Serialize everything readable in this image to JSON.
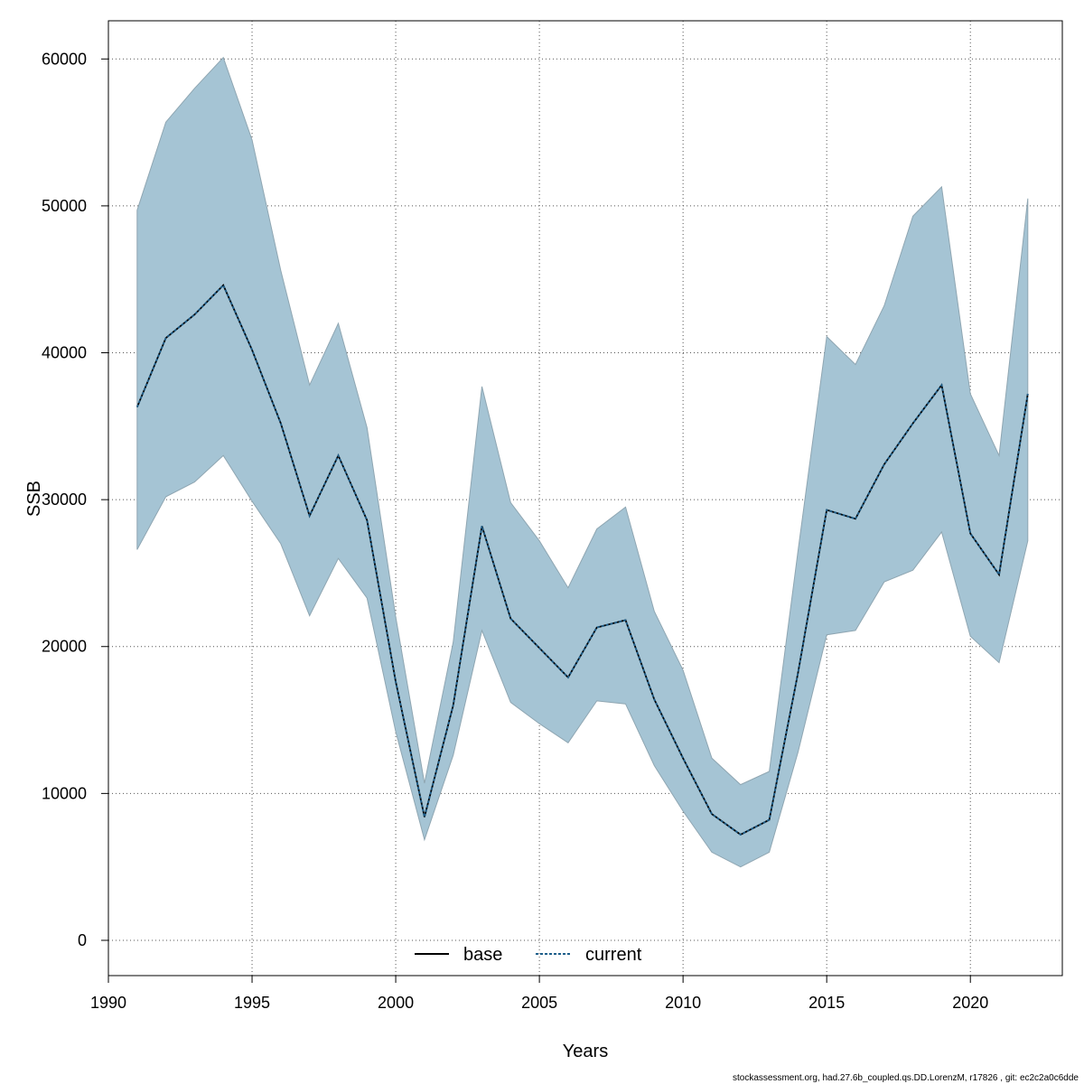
{
  "chart_data": {
    "type": "area",
    "xlabel": "Years",
    "ylabel": "SSB",
    "xlim": [
      1990,
      2023.2
    ],
    "ylim": [
      -2400,
      62600
    ],
    "xticks": [
      1990,
      1995,
      2000,
      2005,
      2010,
      2015,
      2020
    ],
    "yticks": [
      0,
      10000,
      20000,
      30000,
      40000,
      50000,
      60000
    ],
    "grid": true,
    "legend_position": "bottom-center",
    "x": [
      1991,
      1992,
      1993,
      1994,
      1995,
      1996,
      1997,
      1998,
      1999,
      2000,
      2001,
      2002,
      2003,
      2004,
      2005,
      2006,
      2007,
      2008,
      2009,
      2010,
      2011,
      2012,
      2013,
      2014,
      2015,
      2016,
      2017,
      2018,
      2019,
      2020,
      2021,
      2022
    ],
    "band": {
      "color": "#a5c4d4",
      "lower": [
        26600,
        30200,
        31200,
        33000,
        29900,
        27000,
        22100,
        26000,
        23300,
        14200,
        6850,
        12600,
        21100,
        16200,
        14750,
        13450,
        16300,
        16100,
        11900,
        8800,
        6000,
        5000,
        6000,
        12800,
        20800,
        21100,
        24400,
        25200,
        27800,
        20700,
        18900,
        27200
      ],
      "upper": [
        49700,
        55700,
        58000,
        60100,
        54500,
        45600,
        37800,
        42000,
        34900,
        22000,
        10700,
        20300,
        37700,
        29800,
        27200,
        24000,
        28000,
        29500,
        22400,
        18400,
        12400,
        10600,
        11500,
        26500,
        41100,
        39200,
        43200,
        49300,
        51300,
        37200,
        33000,
        50500
      ]
    },
    "series": [
      {
        "name": "base",
        "color": "#000000",
        "style": "solid",
        "values": [
          36300,
          41000,
          42600,
          44600,
          40200,
          35200,
          28900,
          33000,
          28600,
          17600,
          8400,
          16000,
          28200,
          21900,
          19900,
          17900,
          21300,
          21800,
          16400,
          12400,
          8600,
          7200,
          8200,
          18200,
          29300,
          28700,
          32400,
          35200,
          37800,
          27700,
          24900,
          37200
        ]
      },
      {
        "name": "current",
        "color": "#1f5f8b",
        "style": "dashed",
        "values": [
          36300,
          41000,
          42600,
          44600,
          40200,
          35200,
          28900,
          33000,
          28600,
          17600,
          8400,
          16000,
          28200,
          21900,
          19900,
          17900,
          21300,
          21800,
          16400,
          12400,
          8600,
          7200,
          8200,
          18200,
          29300,
          28700,
          32400,
          35200,
          37800,
          27700,
          24900,
          37200
        ]
      }
    ],
    "legend": [
      "base",
      "current"
    ]
  },
  "footer": "stockassessment.org, had.27.6b_coupled.qs.DD.LorenzM, r17826 , git: ec2c2a0c6dde"
}
